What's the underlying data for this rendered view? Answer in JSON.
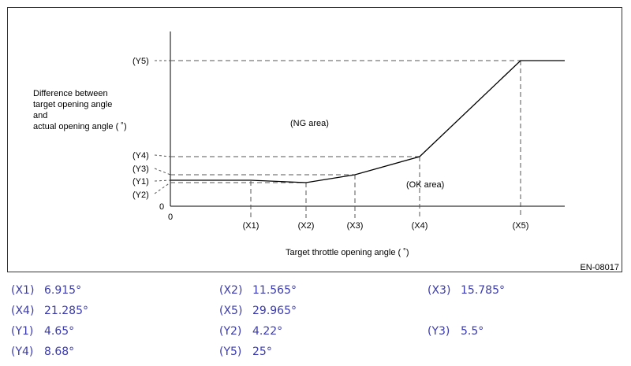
{
  "diagram": {
    "y_axis_label": [
      "Difference between",
      "target opening angle",
      "and",
      "actual opening angle ( ˚)"
    ],
    "x_axis_label": "Target throttle opening angle ( ˚)",
    "origin_x": "0",
    "origin_y": "0",
    "ng_area": "(NG area)",
    "ok_area": "(OK area)",
    "code": "EN-08017",
    "x_ticks": [
      "(X1)",
      "(X2)",
      "(X3)",
      "(X4)",
      "(X5)"
    ],
    "y_ticks": [
      "(Y5)",
      "(Y4)",
      "(Y3)",
      "(Y1)",
      "(Y2)"
    ]
  },
  "values": {
    "x1": {
      "label": "(X1)",
      "value": "6.915°"
    },
    "x2": {
      "label": "(X2)",
      "value": "11.565°"
    },
    "x3": {
      "label": "(X3)",
      "value": "15.785°"
    },
    "x4": {
      "label": "(X4)",
      "value": "21.285°"
    },
    "x5": {
      "label": "(X5)",
      "value": "29.965°"
    },
    "y1": {
      "label": "(Y1)",
      "value": "4.65°"
    },
    "y2": {
      "label": "(Y2)",
      "value": "4.22°"
    },
    "y3": {
      "label": "(Y3)",
      "value": "5.5°"
    },
    "y4": {
      "label": "(Y4)",
      "value": "8.68°"
    },
    "y5": {
      "label": "(Y5)",
      "value": "25°"
    }
  }
}
